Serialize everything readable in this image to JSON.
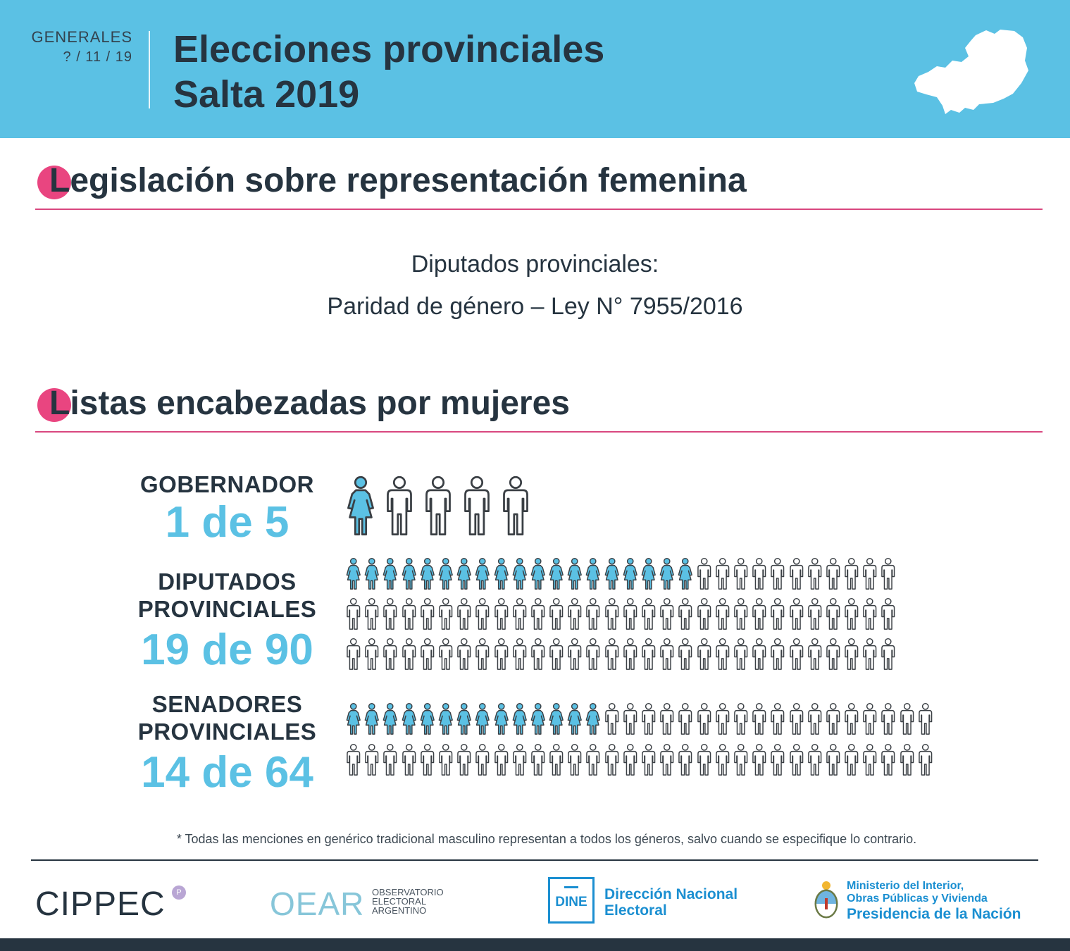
{
  "header": {
    "tag": "GENERALES",
    "date": "? / 11 / 19",
    "title_line1": "Elecciones provinciales",
    "title_line2": "Salta 2019"
  },
  "section1": {
    "title_initial": "L",
    "title": "Legislación sobre representación femenina",
    "line1": "Diputados provinciales:",
    "line2": "Paridad de género – Ley N° 7955/2016"
  },
  "section2": {
    "title": "Listas encabezadas por mujeres"
  },
  "rows": [
    {
      "category": "GOBERNADOR",
      "value": "1 de 5",
      "women": 1,
      "total": 5
    },
    {
      "category": "DIPUTADOS PROVINCIALES",
      "category_line1": "DIPUTADOS",
      "category_line2": "PROVINCIALES",
      "value": "19 de 90",
      "women": 19,
      "total": 90
    },
    {
      "category": "SENADORES PROVINCIALES",
      "category_line1": "SENADORES",
      "category_line2": "PROVINCIALES",
      "value": "14 de 64",
      "women": 14,
      "total": 64
    }
  ],
  "footnote": "* Todas las menciones en genérico tradicional masculino representan a todos los géneros, salvo cuando se especifique lo contrario.",
  "logos": {
    "cippec": "CIPPEC",
    "cippec_mark": "P",
    "oear": "OEAR",
    "oear_sub1": "OBSERVATORIO",
    "oear_sub2": "ELECTORAL",
    "oear_sub3": "ARGENTINO",
    "dine_box": "DINE",
    "dine_line1": "Dirección Nacional",
    "dine_line2": "Electoral",
    "ministerio_line1": "Ministerio del Interior,",
    "ministerio_line2": "Obras Públicas y Vivienda",
    "ministerio_line3": "Presidencia de la Nación"
  },
  "colors": {
    "header_bg": "#5bc1e4",
    "accent_pink": "#e94580",
    "woman_fill": "#5bc1e4",
    "man_fill": "#ffffff",
    "dark": "#263440",
    "dine_blue": "#1b8fd1"
  }
}
